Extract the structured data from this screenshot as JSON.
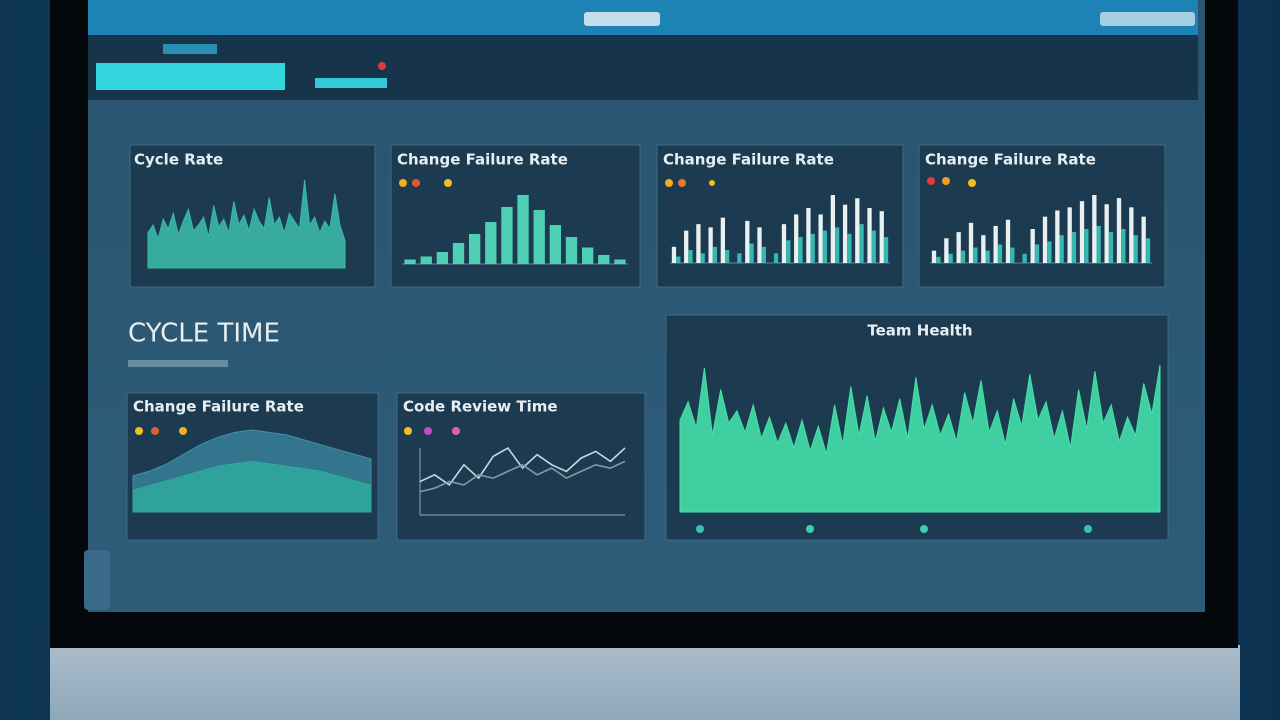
{
  "dashboard": {
    "section_title": "CYCLE TIME"
  },
  "panels": [
    {
      "title": "Cycle Rate",
      "chart": {
        "type": "area",
        "series": [
          {
            "color": "#3bb8a6",
            "values": [
              18,
              22,
              15,
              25,
              20,
              28,
              17,
              24,
              30,
              19,
              22,
              26,
              16,
              32,
              21,
              25,
              18,
              34,
              22,
              27,
              19,
              30,
              24,
              20,
              36,
              22,
              26,
              18,
              28,
              24,
              20,
              45,
              22,
              26,
              18,
              24,
              20,
              38,
              22,
              14
            ]
          }
        ]
      }
    },
    {
      "title": "Change Failure Rate",
      "chart": {
        "type": "bar",
        "series": [
          {
            "color": "#4fd0b4",
            "values": [
              3,
              5,
              8,
              14,
              20,
              28,
              38,
              46,
              36,
              26,
              18,
              11,
              6,
              3
            ]
          }
        ]
      }
    },
    {
      "title": "Change Failure Rate",
      "chart": {
        "type": "bar",
        "series": [
          {
            "color": "#e8f0f2",
            "values": [
              10,
              20,
              24,
              22,
              28,
              0,
              26,
              22,
              0,
              24,
              30,
              34,
              30,
              42,
              36,
              40,
              34,
              32
            ]
          },
          {
            "color": "#35b8b0",
            "values": [
              4,
              8,
              6,
              10,
              8,
              6,
              12,
              10,
              6,
              14,
              16,
              18,
              20,
              22,
              18,
              24,
              20,
              16
            ]
          }
        ]
      }
    },
    {
      "title": "Change Failure Rate",
      "chart": {
        "type": "bar",
        "series": [
          {
            "color": "#e8f0f2",
            "values": [
              8,
              16,
              20,
              26,
              18,
              24,
              28,
              0,
              22,
              30,
              34,
              36,
              40,
              44,
              38,
              42,
              36,
              30
            ]
          },
          {
            "color": "#35b8b0",
            "values": [
              4,
              6,
              8,
              10,
              8,
              12,
              10,
              6,
              12,
              14,
              18,
              20,
              22,
              24,
              20,
              22,
              18,
              16
            ]
          }
        ]
      }
    },
    {
      "title": "Change Failure Rate",
      "chart": {
        "type": "area",
        "series": [
          {
            "color": "#3f8fa8",
            "values": [
              30,
              34,
              40,
              48,
              56,
              62,
              66,
              68,
              66,
              64,
              60,
              56,
              52,
              48,
              44
            ]
          },
          {
            "color": "#2fa99c",
            "values": [
              18,
              22,
              26,
              30,
              34,
              38,
              40,
              42,
              40,
              38,
              36,
              34,
              30,
              26,
              22
            ]
          }
        ]
      }
    },
    {
      "title": "Code Review Time",
      "chart": {
        "type": "line",
        "series": [
          {
            "color": "#c9d6dc",
            "values": [
              20,
              24,
              18,
              30,
              22,
              35,
              40,
              28,
              36,
              30,
              26,
              34,
              38,
              32,
              40
            ]
          },
          {
            "color": "#7f9aa8",
            "values": [
              14,
              16,
              20,
              18,
              24,
              22,
              26,
              30,
              24,
              28,
              22,
              26,
              30,
              28,
              32
            ]
          }
        ]
      }
    },
    {
      "title": "Team Health",
      "chart": {
        "type": "area",
        "series": [
          {
            "color": "#45e0a8",
            "values": [
              60,
              72,
              55,
              94,
              50,
              80,
              58,
              66,
              52,
              70,
              48,
              62,
              45,
              58,
              42,
              60,
              40,
              56,
              38,
              70,
              44,
              82,
              50,
              76,
              46,
              68,
              52,
              74,
              48,
              88,
              54,
              70,
              50,
              64,
              46,
              78,
              58,
              86,
              52,
              66,
              44,
              74,
              56,
              90,
              60,
              72,
              48,
              66,
              42,
              80,
              54,
              92,
              58,
              70,
              46,
              62,
              50,
              84,
              64,
              96
            ]
          }
        ]
      }
    }
  ]
}
